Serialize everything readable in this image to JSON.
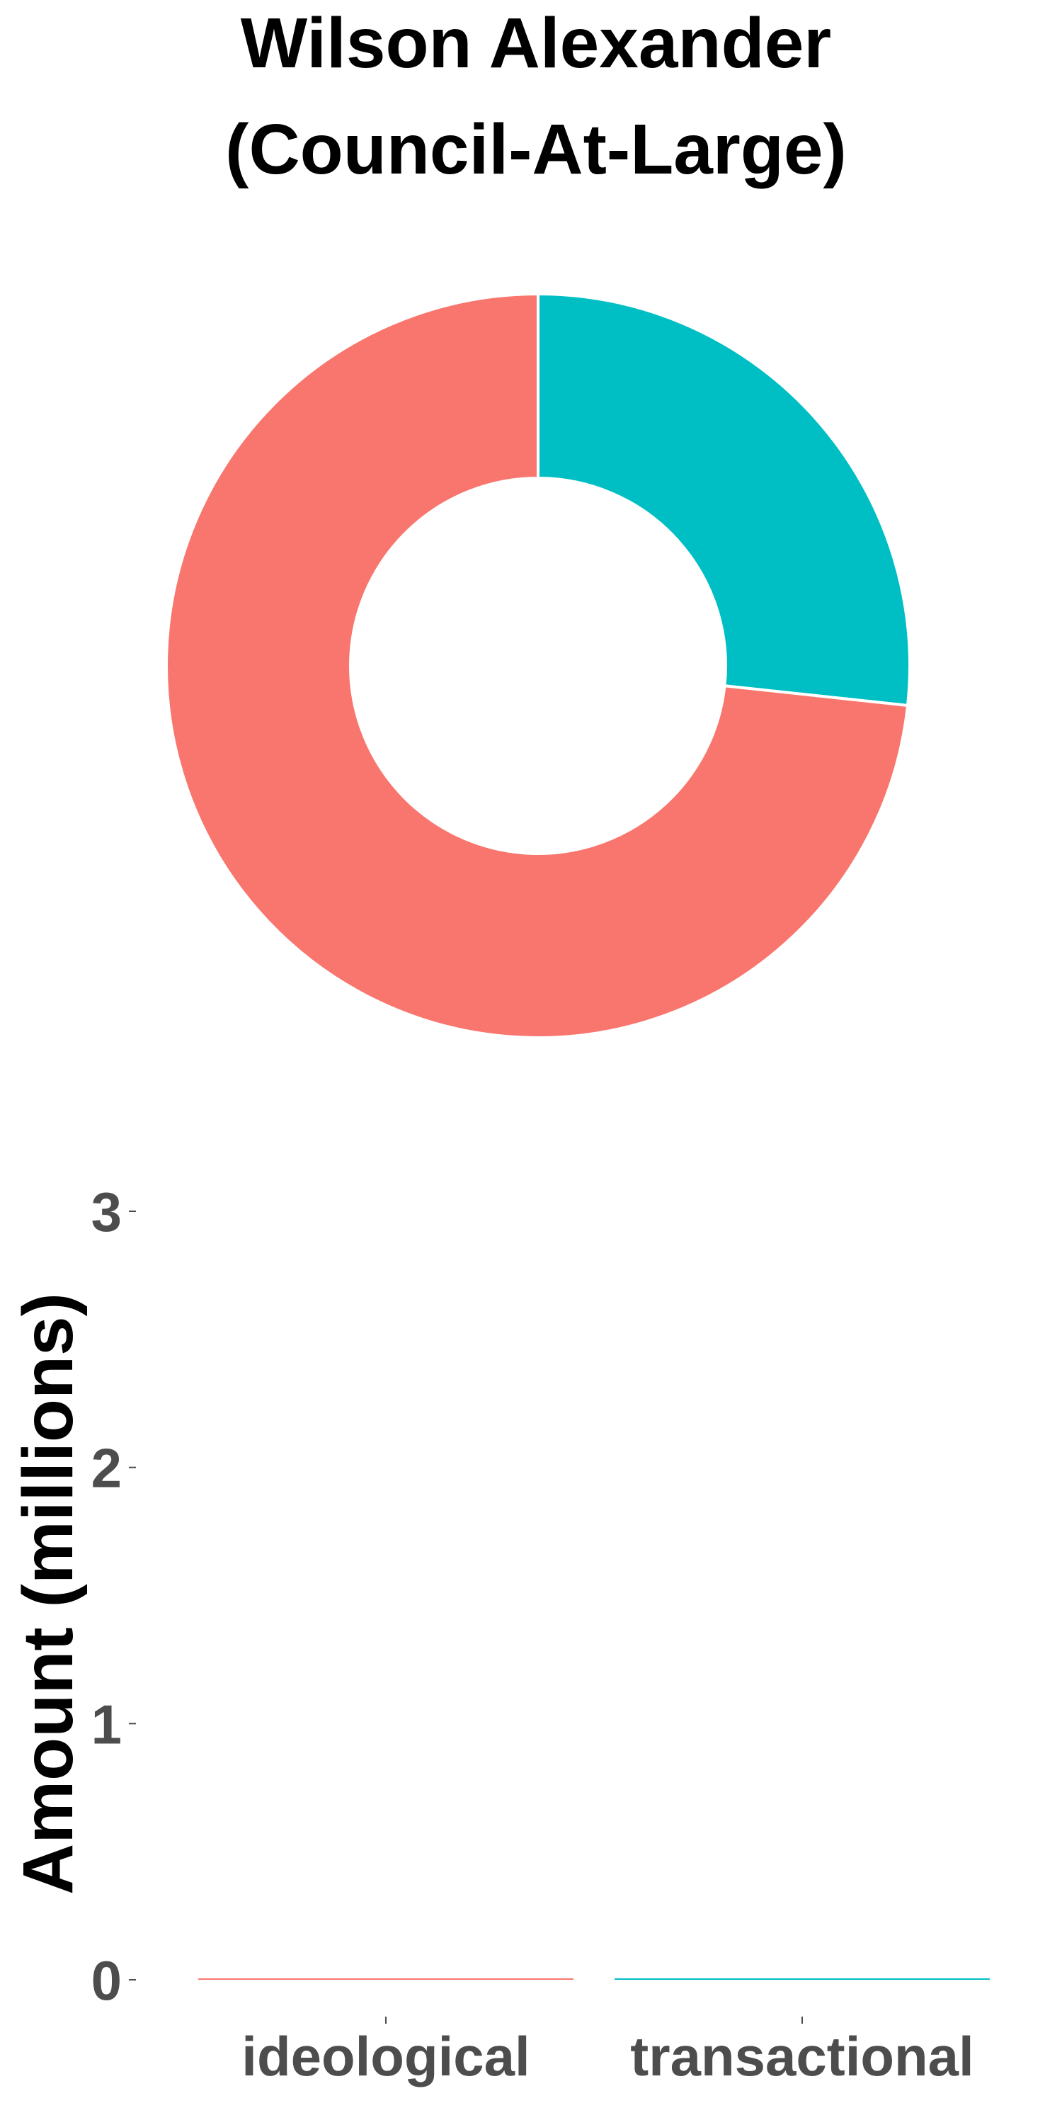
{
  "title_lines": [
    "Wilson Alexander",
    "(Council-At-Large)"
  ],
  "colors": {
    "ideological": "#F8766D",
    "transactional": "#00BFC4",
    "tick_text": "#4d4d4d",
    "title_text": "#000000"
  },
  "chart_data": [
    {
      "type": "pie",
      "variant": "donut",
      "title": "Wilson Alexander (Council-At-Large)",
      "slices": [
        {
          "label": "transactional",
          "share": 0.267,
          "color": "#00BFC4"
        },
        {
          "label": "ideological",
          "share": 0.733,
          "color": "#F8766D"
        }
      ],
      "start": "12 o'clock",
      "direction": "clockwise",
      "legend": "none"
    },
    {
      "type": "bar",
      "categories": [
        "ideological",
        "transactional"
      ],
      "values": [
        0.004,
        0.0015
      ],
      "colors": [
        "#F8766D",
        "#00BFC4"
      ],
      "ylabel": "Amount (millions)",
      "xlabel": "",
      "ylim": [
        0,
        3
      ],
      "yticks": [
        0,
        1,
        2,
        3
      ],
      "grid": false,
      "legend": "none"
    }
  ]
}
